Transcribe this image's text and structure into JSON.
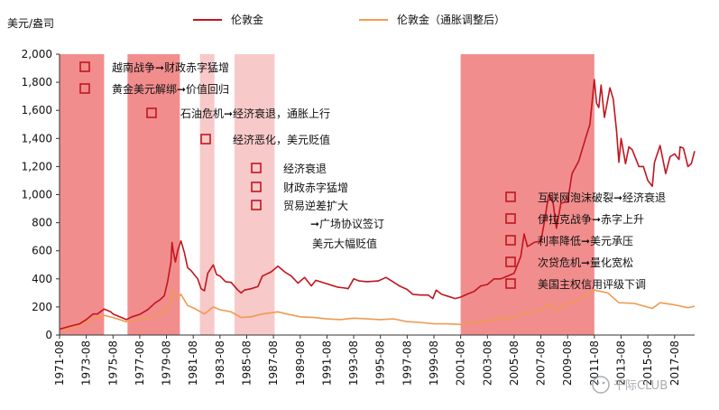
{
  "chart_data": {
    "type": "line",
    "ylabel": "美元/盎司",
    "ylim": [
      0,
      2000
    ],
    "yticks": [
      0,
      200,
      400,
      600,
      800,
      1000,
      1200,
      1400,
      1600,
      1800,
      2000
    ],
    "yticklabels": [
      "0",
      "200",
      "400",
      "600",
      "800",
      "1,000",
      "1,200",
      "1,400",
      "1,600",
      "1,800",
      "2,000"
    ],
    "xlim": [
      "1971-08",
      "2019-02"
    ],
    "xticklabels": [
      "1971-08",
      "1973-08",
      "1975-08",
      "1977-08",
      "1979-08",
      "1981-08",
      "1983-08",
      "1985-08",
      "1987-08",
      "1989-08",
      "1991-08",
      "1993-08",
      "1995-08",
      "1997-08",
      "1999-08",
      "2001-08",
      "2003-08",
      "2005-08",
      "2007-08",
      "2009-08",
      "2011-08",
      "2013-08",
      "2015-08",
      "2017-08"
    ],
    "legend": [
      "伦敦金",
      "伦敦金（通胀调整后）"
    ],
    "colors": {
      "nominal": "#c0161f",
      "real": "#ef9a52",
      "shade_strong": "#f28d8d",
      "shade_light": "#f8c9c9",
      "marker": "#c0161f"
    },
    "shaded_periods": [
      {
        "start": "1971-08",
        "end": "1974-12",
        "style": "strong"
      },
      {
        "start": "1976-09",
        "end": "1980-08",
        "style": "strong"
      },
      {
        "start": "1982-02",
        "end": "1983-03",
        "style": "light"
      },
      {
        "start": "1984-09",
        "end": "1987-09",
        "style": "light"
      },
      {
        "start": "2001-08",
        "end": "2011-08",
        "style": "strong"
      }
    ],
    "series": [
      {
        "name": "伦敦金",
        "points": [
          [
            "1971-08",
            42
          ],
          [
            "1972-06",
            64
          ],
          [
            "1973-02",
            80
          ],
          [
            "1973-08",
            110
          ],
          [
            "1974-02",
            150
          ],
          [
            "1974-06",
            150
          ],
          [
            "1974-12",
            185
          ],
          [
            "1975-06",
            165
          ],
          [
            "1975-08",
            150
          ],
          [
            "1976-08",
            110
          ],
          [
            "1977-01",
            130
          ],
          [
            "1977-08",
            147
          ],
          [
            "1978-03",
            180
          ],
          [
            "1978-10",
            230
          ],
          [
            "1979-02",
            250
          ],
          [
            "1979-06",
            280
          ],
          [
            "1979-09",
            380
          ],
          [
            "1979-12",
            520
          ],
          [
            "1980-01",
            660
          ],
          [
            "1980-02",
            600
          ],
          [
            "1980-04",
            520
          ],
          [
            "1980-06",
            600
          ],
          [
            "1980-09",
            670
          ],
          [
            "1980-12",
            590
          ],
          [
            "1981-03",
            480
          ],
          [
            "1981-06",
            460
          ],
          [
            "1981-09",
            430
          ],
          [
            "1981-12",
            400
          ],
          [
            "1982-03",
            330
          ],
          [
            "1982-06",
            315
          ],
          [
            "1982-09",
            440
          ],
          [
            "1983-02",
            500
          ],
          [
            "1983-05",
            430
          ],
          [
            "1983-08",
            420
          ],
          [
            "1984-01",
            380
          ],
          [
            "1984-06",
            375
          ],
          [
            "1984-12",
            320
          ],
          [
            "1985-03",
            300
          ],
          [
            "1985-06",
            320
          ],
          [
            "1985-12",
            330
          ],
          [
            "1986-06",
            345
          ],
          [
            "1986-10",
            420
          ],
          [
            "1987-06",
            450
          ],
          [
            "1987-12",
            490
          ],
          [
            "1988-06",
            450
          ],
          [
            "1988-12",
            420
          ],
          [
            "1989-06",
            370
          ],
          [
            "1989-12",
            410
          ],
          [
            "1990-06",
            350
          ],
          [
            "1990-10",
            390
          ],
          [
            "1991-06",
            370
          ],
          [
            "1991-12",
            355
          ],
          [
            "1992-06",
            340
          ],
          [
            "1992-12",
            335
          ],
          [
            "1993-03",
            330
          ],
          [
            "1993-08",
            400
          ],
          [
            "1994-01",
            385
          ],
          [
            "1994-08",
            380
          ],
          [
            "1995-06",
            385
          ],
          [
            "1996-01",
            410
          ],
          [
            "1996-06",
            385
          ],
          [
            "1997-01",
            350
          ],
          [
            "1997-08",
            325
          ],
          [
            "1998-01",
            290
          ],
          [
            "1998-08",
            285
          ],
          [
            "1999-03",
            285
          ],
          [
            "1999-07",
            260
          ],
          [
            "1999-10",
            320
          ],
          [
            "2000-03",
            290
          ],
          [
            "2000-09",
            275
          ],
          [
            "2001-03",
            260
          ],
          [
            "2001-08",
            270
          ],
          [
            "2002-03",
            295
          ],
          [
            "2002-08",
            310
          ],
          [
            "2003-02",
            350
          ],
          [
            "2003-08",
            360
          ],
          [
            "2004-02",
            400
          ],
          [
            "2004-08",
            400
          ],
          [
            "2005-02",
            420
          ],
          [
            "2005-08",
            440
          ],
          [
            "2006-02",
            560
          ],
          [
            "2006-05",
            720
          ],
          [
            "2006-08",
            630
          ],
          [
            "2007-02",
            660
          ],
          [
            "2007-08",
            670
          ],
          [
            "2007-11",
            800
          ],
          [
            "2008-03",
            1000
          ],
          [
            "2008-07",
            940
          ],
          [
            "2008-10",
            760
          ],
          [
            "2009-02",
            940
          ],
          [
            "2009-08",
            950
          ],
          [
            "2009-12",
            1150
          ],
          [
            "2010-06",
            1240
          ],
          [
            "2010-12",
            1400
          ],
          [
            "2011-04",
            1500
          ],
          [
            "2011-08",
            1820
          ],
          [
            "2011-10",
            1650
          ],
          [
            "2011-12",
            1620
          ],
          [
            "2012-02",
            1780
          ],
          [
            "2012-05",
            1550
          ],
          [
            "2012-10",
            1760
          ],
          [
            "2013-01",
            1680
          ],
          [
            "2013-04",
            1450
          ],
          [
            "2013-06",
            1230
          ],
          [
            "2013-08",
            1400
          ],
          [
            "2013-12",
            1220
          ],
          [
            "2014-03",
            1340
          ],
          [
            "2014-06",
            1320
          ],
          [
            "2014-12",
            1200
          ],
          [
            "2015-04",
            1200
          ],
          [
            "2015-08",
            1100
          ],
          [
            "2015-12",
            1060
          ],
          [
            "2016-02",
            1230
          ],
          [
            "2016-07",
            1350
          ],
          [
            "2016-12",
            1150
          ],
          [
            "2017-04",
            1270
          ],
          [
            "2017-08",
            1290
          ],
          [
            "2017-12",
            1250
          ],
          [
            "2018-01",
            1340
          ],
          [
            "2018-04",
            1330
          ],
          [
            "2018-08",
            1200
          ],
          [
            "2018-11",
            1220
          ],
          [
            "2019-02",
            1310
          ]
        ]
      },
      {
        "name": "伦敦金（通胀调整后）",
        "points": [
          [
            "1971-08",
            40
          ],
          [
            "1972-06",
            50
          ],
          [
            "1973-06",
            85
          ],
          [
            "1974-06",
            120
          ],
          [
            "1974-12",
            140
          ],
          [
            "1975-08",
            125
          ],
          [
            "1976-08",
            95
          ],
          [
            "1977-08",
            110
          ],
          [
            "1978-08",
            130
          ],
          [
            "1979-08",
            180
          ],
          [
            "1979-12",
            230
          ],
          [
            "1980-01",
            310
          ],
          [
            "1980-06",
            260
          ],
          [
            "1980-09",
            290
          ],
          [
            "1981-03",
            210
          ],
          [
            "1981-09",
            190
          ],
          [
            "1982-06",
            150
          ],
          [
            "1983-02",
            200
          ],
          [
            "1983-08",
            180
          ],
          [
            "1984-06",
            165
          ],
          [
            "1985-03",
            125
          ],
          [
            "1985-12",
            130
          ],
          [
            "1986-10",
            150
          ],
          [
            "1987-12",
            165
          ],
          [
            "1988-08",
            150
          ],
          [
            "1989-08",
            130
          ],
          [
            "1990-08",
            125
          ],
          [
            "1991-08",
            115
          ],
          [
            "1992-08",
            110
          ],
          [
            "1993-08",
            120
          ],
          [
            "1994-08",
            115
          ],
          [
            "1995-08",
            110
          ],
          [
            "1996-08",
            115
          ],
          [
            "1997-08",
            95
          ],
          [
            "1998-08",
            90
          ],
          [
            "1999-08",
            80
          ],
          [
            "2000-08",
            80
          ],
          [
            "2001-08",
            75
          ],
          [
            "2002-08",
            90
          ],
          [
            "2003-08",
            100
          ],
          [
            "2004-08",
            115
          ],
          [
            "2005-08",
            125
          ],
          [
            "2006-08",
            160
          ],
          [
            "2007-08",
            170
          ],
          [
            "2008-03",
            220
          ],
          [
            "2008-10",
            180
          ],
          [
            "2009-08",
            220
          ],
          [
            "2010-08",
            260
          ],
          [
            "2011-08",
            320
          ],
          [
            "2012-08",
            300
          ],
          [
            "2013-06",
            230
          ],
          [
            "2014-08",
            225
          ],
          [
            "2015-12",
            190
          ],
          [
            "2016-07",
            230
          ],
          [
            "2017-08",
            215
          ],
          [
            "2018-08",
            195
          ],
          [
            "2019-02",
            205
          ]
        ]
      }
    ],
    "annotations": [
      "越南战争➞财政赤字猛增",
      "黄金美元解绑➞价值回归",
      "石油危机➞经济衰退，通胀上行",
      "经济恶化，美元贬值",
      "经济衰退",
      "财政赤字猛增",
      "贸易逆差扩大",
      "➞广场协议签订",
      "美元大幅贬值",
      "互联网泡沫破裂➞经济衰退",
      "伊拉克战争➞赤字上升",
      "利率降低➞美元承压",
      "次贷危机➞量化宽松",
      "美国主权信用评级下调"
    ],
    "watermark": "千际CLUB"
  }
}
